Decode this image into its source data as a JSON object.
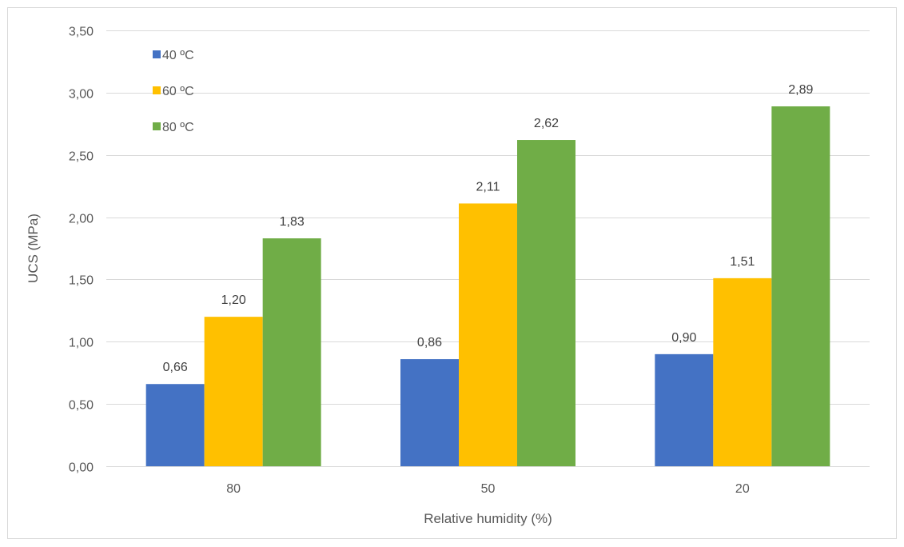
{
  "chart_data": {
    "type": "bar",
    "categories": [
      "80",
      "50",
      "20"
    ],
    "series": [
      {
        "name": "40 ºC",
        "color": "#4472c4",
        "values": [
          0.66,
          0.86,
          0.9
        ],
        "labels": [
          "0,66",
          "0,86",
          "0,90"
        ]
      },
      {
        "name": "60 ºC",
        "color": "#ffc000",
        "values": [
          1.2,
          2.11,
          1.51
        ],
        "labels": [
          "1,20",
          "2,11",
          "1,51"
        ]
      },
      {
        "name": "80 ºC",
        "color": "#70ad47",
        "values": [
          1.83,
          2.62,
          2.89
        ],
        "labels": [
          "1,83",
          "2,62",
          "2,89"
        ]
      }
    ],
    "title": "",
    "xlabel": "Relative humidity (%)",
    "ylabel": "UCS (MPa)",
    "ylim": [
      0,
      3.5
    ],
    "yticks": [
      0,
      0.5,
      1.0,
      1.5,
      2.0,
      2.5,
      3.0,
      3.5
    ],
    "ytick_labels": [
      "0,00",
      "0,50",
      "1,00",
      "1,50",
      "2,00",
      "2,50",
      "3,00",
      "3,50"
    ],
    "grid": true,
    "legend_position": "top-left"
  }
}
